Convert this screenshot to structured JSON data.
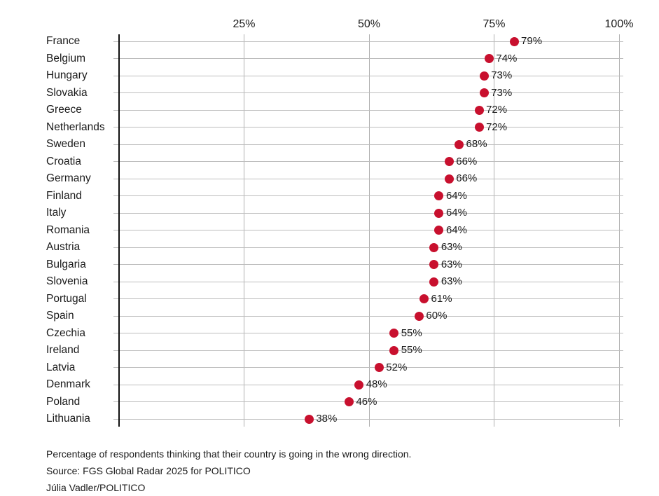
{
  "chart_data": {
    "type": "scatter",
    "variant": "horizontal-dot-plot",
    "title": "",
    "xlabel": "",
    "ylabel": "",
    "xlim": [
      0,
      100
    ],
    "grid": true,
    "dot_color": "#C8102E",
    "x_ticks": [
      {
        "value": 25,
        "label": "25%"
      },
      {
        "value": 50,
        "label": "50%"
      },
      {
        "value": 75,
        "label": "75%"
      },
      {
        "value": 100,
        "label": "100%"
      }
    ],
    "categories": [
      "France",
      "Belgium",
      "Hungary",
      "Slovakia",
      "Greece",
      "Netherlands",
      "Sweden",
      "Croatia",
      "Germany",
      "Finland",
      "Italy",
      "Romania",
      "Austria",
      "Bulgaria",
      "Slovenia",
      "Portugal",
      "Spain",
      "Czechia",
      "Ireland",
      "Latvia",
      "Denmark",
      "Poland",
      "Lithuania"
    ],
    "values": [
      79,
      74,
      73,
      73,
      72,
      72,
      68,
      66,
      66,
      64,
      64,
      64,
      63,
      63,
      63,
      61,
      60,
      55,
      55,
      52,
      48,
      46,
      38
    ],
    "value_suffix": "%",
    "caption": "Percentage of respondents thinking that their country is going in the wrong direction.",
    "source": "Source: FGS Global Radar 2025 for POLITICO",
    "credit": "Júlia Vadler/POLITICO"
  }
}
